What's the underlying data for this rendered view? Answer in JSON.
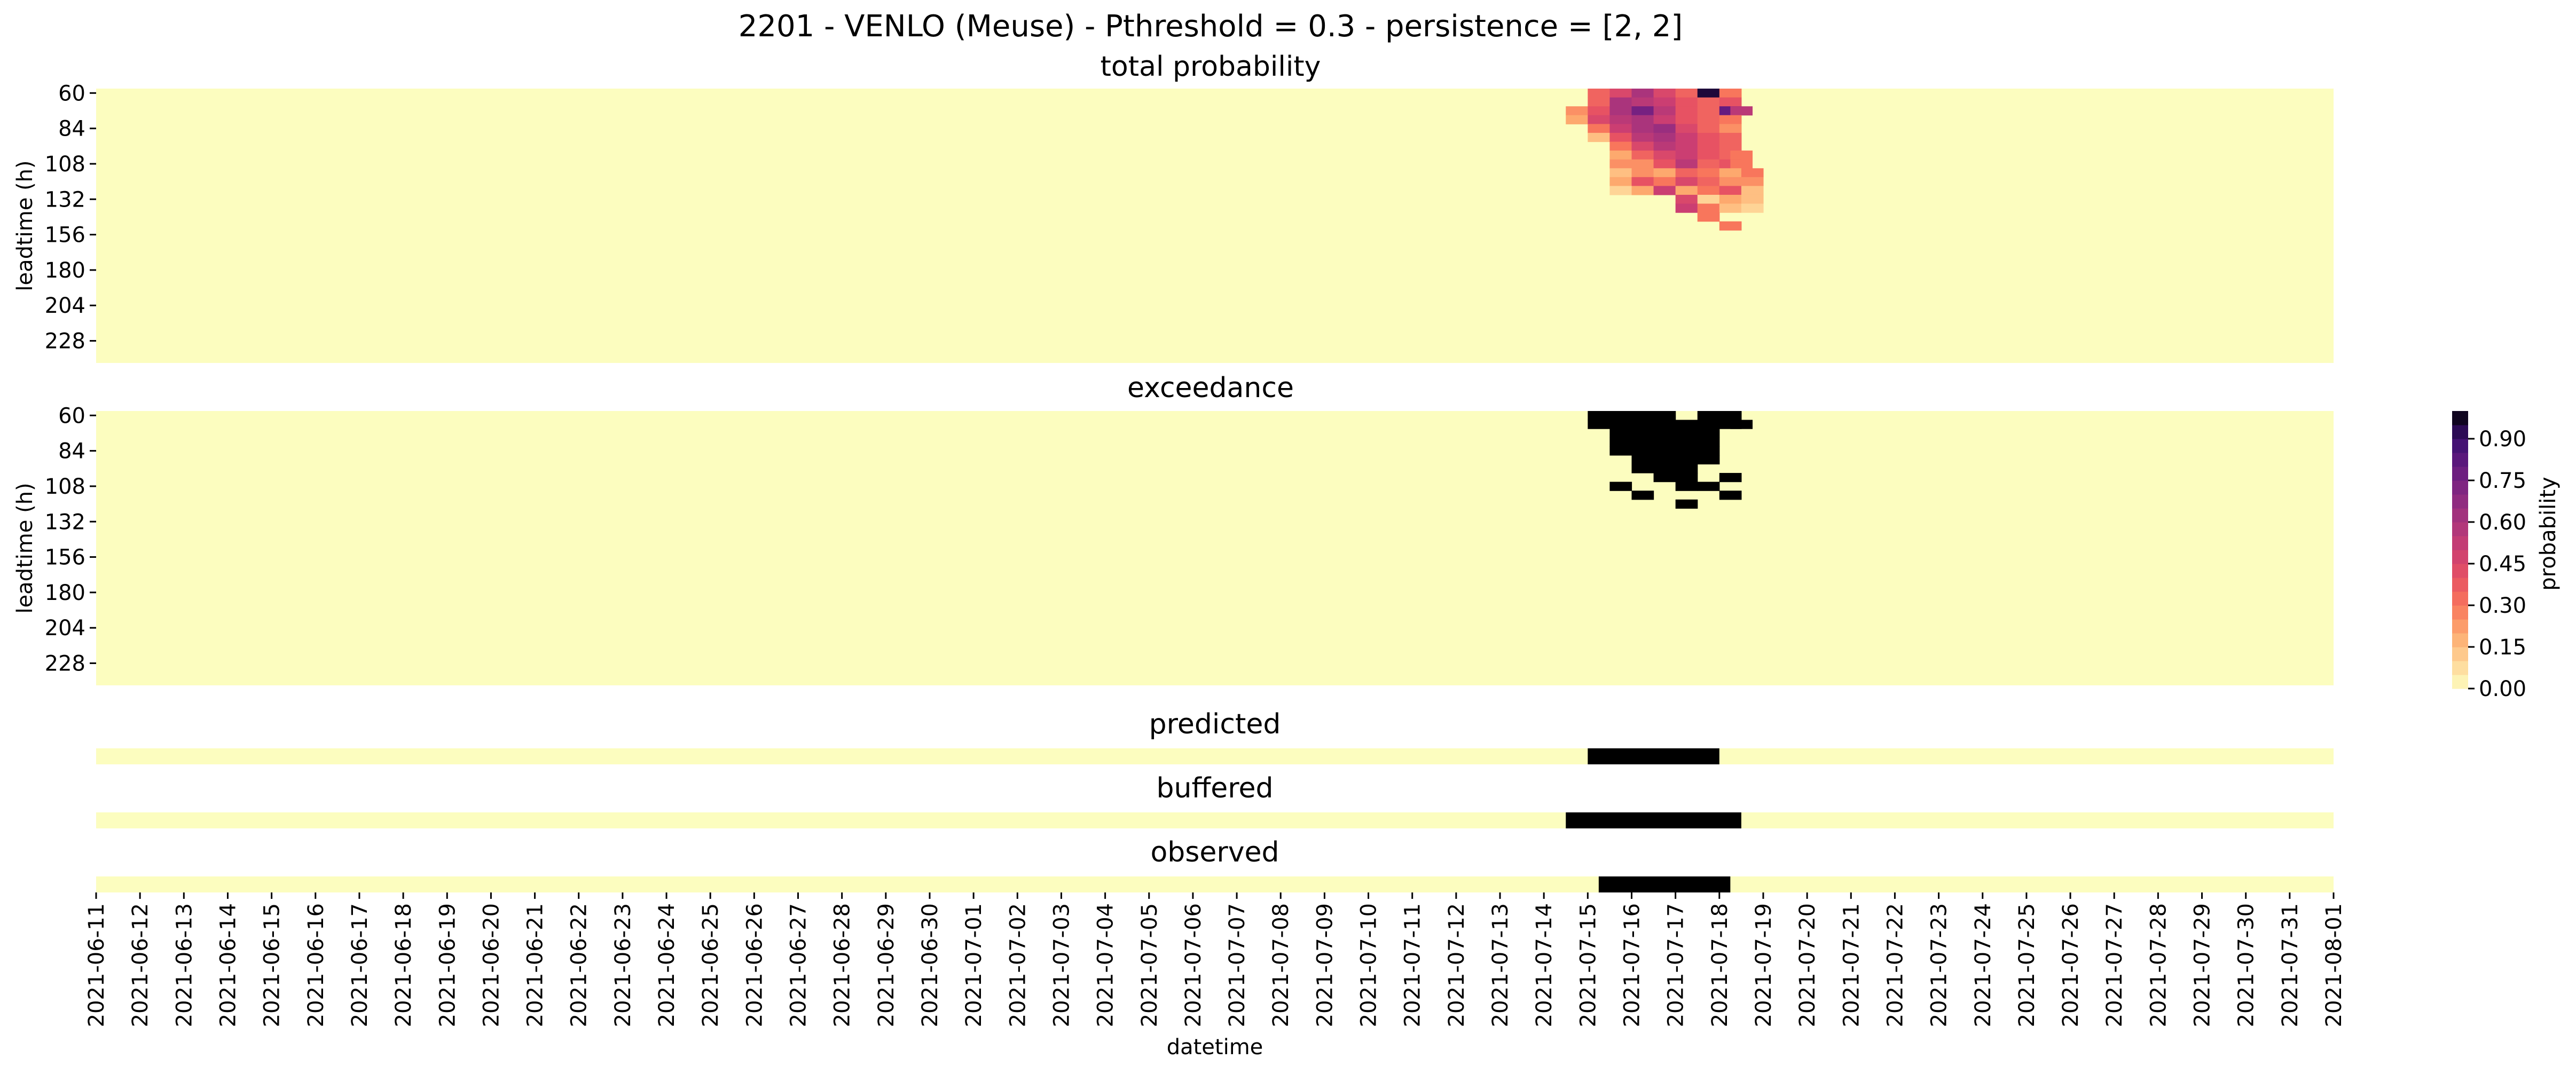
{
  "title": "2201 - VENLO (Meuse) - Pthreshold = 0.3 - persistence = [2, 2]",
  "xlabel": "datetime",
  "colorbar_label": "probability",
  "chart_data": [
    {
      "type": "heatmap",
      "id": "total",
      "title": "total probability",
      "ylabel": "leadtime (h)",
      "ytick_labels": [
        "60",
        "84",
        "108",
        "132",
        "156",
        "180",
        "204",
        "228"
      ],
      "leadtime_range_h": [
        60,
        246
      ],
      "leadtime_step_h": 6,
      "date_range": [
        "2021-06-11",
        "2021-08-01"
      ],
      "time_step_h": 12,
      "hotspot_cells": [
        {
          "date": "2021-07-15",
          "hour": 0,
          "lead": 60,
          "p": 0.35
        },
        {
          "date": "2021-07-15",
          "hour": 12,
          "lead": 60,
          "p": 0.45
        },
        {
          "date": "2021-07-16",
          "hour": 0,
          "lead": 60,
          "p": 0.6
        },
        {
          "date": "2021-07-16",
          "hour": 12,
          "lead": 60,
          "p": 0.45
        },
        {
          "date": "2021-07-17",
          "hour": 0,
          "lead": 60,
          "p": 0.35
        },
        {
          "date": "2021-07-17",
          "hour": 12,
          "lead": 60,
          "p": 0.95
        },
        {
          "date": "2021-07-18",
          "hour": 0,
          "lead": 60,
          "p": 0.3
        },
        {
          "date": "2021-07-15",
          "hour": 0,
          "lead": 66,
          "p": 0.35
        },
        {
          "date": "2021-07-15",
          "hour": 12,
          "lead": 66,
          "p": 0.6
        },
        {
          "date": "2021-07-16",
          "hour": 0,
          "lead": 66,
          "p": 0.55
        },
        {
          "date": "2021-07-16",
          "hour": 12,
          "lead": 66,
          "p": 0.5
        },
        {
          "date": "2021-07-17",
          "hour": 0,
          "lead": 66,
          "p": 0.4
        },
        {
          "date": "2021-07-17",
          "hour": 12,
          "lead": 66,
          "p": 0.35
        },
        {
          "date": "2021-07-18",
          "hour": 0,
          "lead": 66,
          "p": 0.4
        },
        {
          "date": "2021-07-14",
          "hour": 12,
          "lead": 72,
          "p": 0.25
        },
        {
          "date": "2021-07-15",
          "hour": 0,
          "lead": 72,
          "p": 0.4
        },
        {
          "date": "2021-07-15",
          "hour": 12,
          "lead": 72,
          "p": 0.6
        },
        {
          "date": "2021-07-16",
          "hour": 0,
          "lead": 72,
          "p": 0.75
        },
        {
          "date": "2021-07-16",
          "hour": 12,
          "lead": 72,
          "p": 0.55
        },
        {
          "date": "2021-07-17",
          "hour": 0,
          "lead": 72,
          "p": 0.4
        },
        {
          "date": "2021-07-17",
          "hour": 12,
          "lead": 72,
          "p": 0.35
        },
        {
          "date": "2021-07-18",
          "hour": 0,
          "lead": 72,
          "p": 0.8
        },
        {
          "date": "2021-07-18",
          "hour": 6,
          "lead": 72,
          "p": 0.55
        },
        {
          "date": "2021-07-14",
          "hour": 12,
          "lead": 78,
          "p": 0.2
        },
        {
          "date": "2021-07-15",
          "hour": 0,
          "lead": 78,
          "p": 0.45
        },
        {
          "date": "2021-07-15",
          "hour": 12,
          "lead": 78,
          "p": 0.55
        },
        {
          "date": "2021-07-16",
          "hour": 0,
          "lead": 78,
          "p": 0.6
        },
        {
          "date": "2021-07-16",
          "hour": 12,
          "lead": 78,
          "p": 0.5
        },
        {
          "date": "2021-07-17",
          "hour": 0,
          "lead": 78,
          "p": 0.4
        },
        {
          "date": "2021-07-17",
          "hour": 12,
          "lead": 78,
          "p": 0.35
        },
        {
          "date": "2021-07-18",
          "hour": 0,
          "lead": 78,
          "p": 0.3
        },
        {
          "date": "2021-07-15",
          "hour": 0,
          "lead": 84,
          "p": 0.3
        },
        {
          "date": "2021-07-15",
          "hour": 12,
          "lead": 84,
          "p": 0.5
        },
        {
          "date": "2021-07-16",
          "hour": 0,
          "lead": 84,
          "p": 0.6
        },
        {
          "date": "2021-07-16",
          "hour": 12,
          "lead": 84,
          "p": 0.65
        },
        {
          "date": "2021-07-17",
          "hour": 0,
          "lead": 84,
          "p": 0.45
        },
        {
          "date": "2021-07-17",
          "hour": 12,
          "lead": 84,
          "p": 0.35
        },
        {
          "date": "2021-07-18",
          "hour": 0,
          "lead": 84,
          "p": 0.25
        },
        {
          "date": "2021-07-15",
          "hour": 0,
          "lead": 90,
          "p": 0.15
        },
        {
          "date": "2021-07-15",
          "hour": 12,
          "lead": 90,
          "p": 0.4
        },
        {
          "date": "2021-07-16",
          "hour": 0,
          "lead": 90,
          "p": 0.55
        },
        {
          "date": "2021-07-16",
          "hour": 12,
          "lead": 90,
          "p": 0.6
        },
        {
          "date": "2021-07-17",
          "hour": 0,
          "lead": 90,
          "p": 0.5
        },
        {
          "date": "2021-07-17",
          "hour": 12,
          "lead": 90,
          "p": 0.4
        },
        {
          "date": "2021-07-18",
          "hour": 0,
          "lead": 90,
          "p": 0.35
        },
        {
          "date": "2021-07-15",
          "hour": 12,
          "lead": 96,
          "p": 0.3
        },
        {
          "date": "2021-07-16",
          "hour": 0,
          "lead": 96,
          "p": 0.45
        },
        {
          "date": "2021-07-16",
          "hour": 12,
          "lead": 96,
          "p": 0.55
        },
        {
          "date": "2021-07-17",
          "hour": 0,
          "lead": 96,
          "p": 0.5
        },
        {
          "date": "2021-07-17",
          "hour": 12,
          "lead": 96,
          "p": 0.4
        },
        {
          "date": "2021-07-18",
          "hour": 0,
          "lead": 96,
          "p": 0.35
        },
        {
          "date": "2021-07-15",
          "hour": 12,
          "lead": 102,
          "p": 0.2
        },
        {
          "date": "2021-07-16",
          "hour": 0,
          "lead": 102,
          "p": 0.35
        },
        {
          "date": "2021-07-16",
          "hour": 12,
          "lead": 102,
          "p": 0.45
        },
        {
          "date": "2021-07-17",
          "hour": 0,
          "lead": 102,
          "p": 0.5
        },
        {
          "date": "2021-07-17",
          "hour": 12,
          "lead": 102,
          "p": 0.4
        },
        {
          "date": "2021-07-18",
          "hour": 0,
          "lead": 102,
          "p": 0.35
        },
        {
          "date": "2021-07-18",
          "hour": 6,
          "lead": 102,
          "p": 0.3
        },
        {
          "date": "2021-07-15",
          "hour": 12,
          "lead": 108,
          "p": 0.25
        },
        {
          "date": "2021-07-16",
          "hour": 0,
          "lead": 108,
          "p": 0.25
        },
        {
          "date": "2021-07-16",
          "hour": 12,
          "lead": 108,
          "p": 0.4
        },
        {
          "date": "2021-07-17",
          "hour": 0,
          "lead": 108,
          "p": 0.55
        },
        {
          "date": "2021-07-17",
          "hour": 12,
          "lead": 108,
          "p": 0.35
        },
        {
          "date": "2021-07-18",
          "hour": 0,
          "lead": 108,
          "p": 0.4
        },
        {
          "date": "2021-07-18",
          "hour": 6,
          "lead": 108,
          "p": 0.3
        },
        {
          "date": "2021-07-15",
          "hour": 12,
          "lead": 114,
          "p": 0.15
        },
        {
          "date": "2021-07-16",
          "hour": 0,
          "lead": 114,
          "p": 0.25
        },
        {
          "date": "2021-07-16",
          "hour": 12,
          "lead": 114,
          "p": 0.2
        },
        {
          "date": "2021-07-17",
          "hour": 0,
          "lead": 114,
          "p": 0.35
        },
        {
          "date": "2021-07-17",
          "hour": 12,
          "lead": 114,
          "p": 0.3
        },
        {
          "date": "2021-07-18",
          "hour": 0,
          "lead": 114,
          "p": 0.2
        },
        {
          "date": "2021-07-18",
          "hour": 12,
          "lead": 114,
          "p": 0.3
        },
        {
          "date": "2021-07-15",
          "hour": 12,
          "lead": 120,
          "p": 0.2
        },
        {
          "date": "2021-07-16",
          "hour": 0,
          "lead": 120,
          "p": 0.4
        },
        {
          "date": "2021-07-16",
          "hour": 12,
          "lead": 120,
          "p": 0.3
        },
        {
          "date": "2021-07-17",
          "hour": 0,
          "lead": 120,
          "p": 0.45
        },
        {
          "date": "2021-07-17",
          "hour": 12,
          "lead": 120,
          "p": 0.35
        },
        {
          "date": "2021-07-18",
          "hour": 0,
          "lead": 120,
          "p": 0.25
        },
        {
          "date": "2021-07-18",
          "hour": 12,
          "lead": 120,
          "p": 0.25
        },
        {
          "date": "2021-07-15",
          "hour": 12,
          "lead": 126,
          "p": 0.1
        },
        {
          "date": "2021-07-16",
          "hour": 0,
          "lead": 126,
          "p": 0.2
        },
        {
          "date": "2021-07-16",
          "hour": 12,
          "lead": 126,
          "p": 0.5
        },
        {
          "date": "2021-07-17",
          "hour": 0,
          "lead": 126,
          "p": 0.2
        },
        {
          "date": "2021-07-17",
          "hour": 12,
          "lead": 126,
          "p": 0.3
        },
        {
          "date": "2021-07-18",
          "hour": 0,
          "lead": 126,
          "p": 0.4
        },
        {
          "date": "2021-07-18",
          "hour": 12,
          "lead": 126,
          "p": 0.15
        },
        {
          "date": "2021-07-17",
          "hour": 0,
          "lead": 132,
          "p": 0.45
        },
        {
          "date": "2021-07-17",
          "hour": 12,
          "lead": 132,
          "p": 0.1
        },
        {
          "date": "2021-07-18",
          "hour": 0,
          "lead": 132,
          "p": 0.2
        },
        {
          "date": "2021-07-18",
          "hour": 12,
          "lead": 132,
          "p": 0.15
        },
        {
          "date": "2021-07-17",
          "hour": 0,
          "lead": 138,
          "p": 0.5
        },
        {
          "date": "2021-07-17",
          "hour": 12,
          "lead": 138,
          "p": 0.3
        },
        {
          "date": "2021-07-18",
          "hour": 0,
          "lead": 138,
          "p": 0.15
        },
        {
          "date": "2021-07-18",
          "hour": 12,
          "lead": 138,
          "p": 0.1
        },
        {
          "date": "2021-07-17",
          "hour": 12,
          "lead": 144,
          "p": 0.3
        },
        {
          "date": "2021-07-18",
          "hour": 0,
          "lead": 150,
          "p": 0.3
        }
      ]
    },
    {
      "type": "heatmap",
      "id": "exceedance",
      "title": "exceedance",
      "ylabel": "leadtime (h)",
      "ytick_labels": [
        "60",
        "84",
        "108",
        "132",
        "156",
        "180",
        "204",
        "228"
      ],
      "exceeded_cells": [
        {
          "date": "2021-07-15",
          "hour": 0,
          "lead": 60
        },
        {
          "date": "2021-07-15",
          "hour": 12,
          "lead": 60
        },
        {
          "date": "2021-07-16",
          "hour": 0,
          "lead": 60
        },
        {
          "date": "2021-07-16",
          "hour": 12,
          "lead": 60
        },
        {
          "date": "2021-07-17",
          "hour": 12,
          "lead": 60
        },
        {
          "date": "2021-07-18",
          "hour": 0,
          "lead": 60
        },
        {
          "date": "2021-07-15",
          "hour": 0,
          "lead": 66
        },
        {
          "date": "2021-07-15",
          "hour": 12,
          "lead": 66
        },
        {
          "date": "2021-07-16",
          "hour": 0,
          "lead": 66
        },
        {
          "date": "2021-07-16",
          "hour": 12,
          "lead": 66
        },
        {
          "date": "2021-07-17",
          "hour": 0,
          "lead": 66
        },
        {
          "date": "2021-07-17",
          "hour": 12,
          "lead": 66
        },
        {
          "date": "2021-07-18",
          "hour": 0,
          "lead": 66
        },
        {
          "date": "2021-07-18",
          "hour": 6,
          "lead": 66
        },
        {
          "date": "2021-07-15",
          "hour": 12,
          "lead": 72
        },
        {
          "date": "2021-07-16",
          "hour": 0,
          "lead": 72
        },
        {
          "date": "2021-07-16",
          "hour": 12,
          "lead": 72
        },
        {
          "date": "2021-07-17",
          "hour": 0,
          "lead": 72
        },
        {
          "date": "2021-07-17",
          "hour": 12,
          "lead": 72
        },
        {
          "date": "2021-07-15",
          "hour": 12,
          "lead": 78
        },
        {
          "date": "2021-07-16",
          "hour": 0,
          "lead": 78
        },
        {
          "date": "2021-07-16",
          "hour": 12,
          "lead": 78
        },
        {
          "date": "2021-07-17",
          "hour": 0,
          "lead": 78
        },
        {
          "date": "2021-07-17",
          "hour": 12,
          "lead": 78
        },
        {
          "date": "2021-07-15",
          "hour": 12,
          "lead": 84
        },
        {
          "date": "2021-07-16",
          "hour": 0,
          "lead": 84
        },
        {
          "date": "2021-07-16",
          "hour": 12,
          "lead": 84
        },
        {
          "date": "2021-07-17",
          "hour": 0,
          "lead": 84
        },
        {
          "date": "2021-07-17",
          "hour": 12,
          "lead": 84
        },
        {
          "date": "2021-07-16",
          "hour": 0,
          "lead": 90
        },
        {
          "date": "2021-07-16",
          "hour": 12,
          "lead": 90
        },
        {
          "date": "2021-07-17",
          "hour": 0,
          "lead": 90
        },
        {
          "date": "2021-07-17",
          "hour": 12,
          "lead": 90
        },
        {
          "date": "2021-07-16",
          "hour": 0,
          "lead": 96
        },
        {
          "date": "2021-07-16",
          "hour": 12,
          "lead": 96
        },
        {
          "date": "2021-07-17",
          "hour": 0,
          "lead": 96
        },
        {
          "date": "2021-07-16",
          "hour": 12,
          "lead": 102
        },
        {
          "date": "2021-07-17",
          "hour": 0,
          "lead": 102
        },
        {
          "date": "2021-07-18",
          "hour": 0,
          "lead": 102
        },
        {
          "date": "2021-07-15",
          "hour": 12,
          "lead": 108
        },
        {
          "date": "2021-07-17",
          "hour": 0,
          "lead": 108
        },
        {
          "date": "2021-07-17",
          "hour": 12,
          "lead": 108
        },
        {
          "date": "2021-07-16",
          "hour": 0,
          "lead": 114
        },
        {
          "date": "2021-07-18",
          "hour": 0,
          "lead": 114
        },
        {
          "date": "2021-07-17",
          "hour": 0,
          "lead": 120
        }
      ]
    },
    {
      "type": "heatmap",
      "id": "predicted",
      "title": "predicted",
      "event_range": [
        "2021-07-15T00",
        "2021-07-18T00"
      ]
    },
    {
      "type": "heatmap",
      "id": "buffered",
      "title": "buffered",
      "event_range": [
        "2021-07-14T12",
        "2021-07-18T12"
      ]
    },
    {
      "type": "heatmap",
      "id": "observed",
      "title": "observed",
      "event_range": [
        "2021-07-15T06",
        "2021-07-18T06"
      ]
    }
  ],
  "xtick_labels": [
    "2021-06-11",
    "2021-06-12",
    "2021-06-13",
    "2021-06-14",
    "2021-06-15",
    "2021-06-16",
    "2021-06-17",
    "2021-06-18",
    "2021-06-19",
    "2021-06-20",
    "2021-06-21",
    "2021-06-22",
    "2021-06-23",
    "2021-06-24",
    "2021-06-25",
    "2021-06-26",
    "2021-06-27",
    "2021-06-28",
    "2021-06-29",
    "2021-06-30",
    "2021-07-01",
    "2021-07-02",
    "2021-07-03",
    "2021-07-04",
    "2021-07-05",
    "2021-07-06",
    "2021-07-07",
    "2021-07-08",
    "2021-07-09",
    "2021-07-10",
    "2021-07-11",
    "2021-07-12",
    "2021-07-13",
    "2021-07-14",
    "2021-07-15",
    "2021-07-16",
    "2021-07-17",
    "2021-07-18",
    "2021-07-19",
    "2021-07-20",
    "2021-07-21",
    "2021-07-22",
    "2021-07-23",
    "2021-07-24",
    "2021-07-25",
    "2021-07-26",
    "2021-07-27",
    "2021-07-28",
    "2021-07-29",
    "2021-07-30",
    "2021-07-31",
    "2021-08-01"
  ],
  "colorbar": {
    "tick_labels": [
      "0.00",
      "0.15",
      "0.30",
      "0.45",
      "0.60",
      "0.75",
      "0.90"
    ],
    "range": [
      0,
      1
    ],
    "colormap": "magma_r",
    "background_color": "#fcfdbf",
    "event_color": "#000000"
  }
}
